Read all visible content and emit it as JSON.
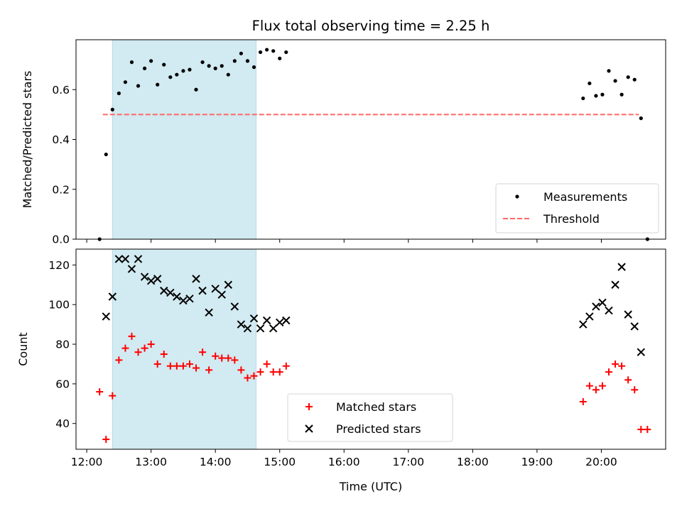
{
  "chart_data": [
    {
      "type": "scatter",
      "title": "Flux total observing time = 2.25 h",
      "ylabel": "Matched/Predicted stars",
      "xlabel": "",
      "xlim": [
        "11:50",
        "21:00"
      ],
      "ylim": [
        0,
        0.8
      ],
      "y_ticks": [
        0.0,
        0.2,
        0.4,
        0.6
      ],
      "y_tick_labels": [
        "0.0",
        "0.2",
        "0.4",
        "0.6"
      ],
      "shaded_interval": {
        "start": "12:24",
        "end": "14:38",
        "color": "#add8e6"
      },
      "threshold": {
        "name": "Threshold",
        "value": 0.5,
        "x_start": "12:15",
        "x_end": "20:35",
        "color": "#ff6666",
        "style": "dashed"
      },
      "legend_position": "lower right",
      "series": [
        {
          "name": "Measurements",
          "color": "#000000",
          "marker": "dot",
          "points": [
            [
              "12:12",
              0.0
            ],
            [
              "12:18",
              0.34
            ],
            [
              "12:24",
              0.52
            ],
            [
              "12:30",
              0.585
            ],
            [
              "12:36",
              0.63
            ],
            [
              "12:42",
              0.71
            ],
            [
              "12:48",
              0.615
            ],
            [
              "12:54",
              0.685
            ],
            [
              "13:00",
              0.715
            ],
            [
              "13:06",
              0.62
            ],
            [
              "13:12",
              0.7
            ],
            [
              "13:18",
              0.65
            ],
            [
              "13:24",
              0.66
            ],
            [
              "13:30",
              0.675
            ],
            [
              "13:36",
              0.68
            ],
            [
              "13:42",
              0.6
            ],
            [
              "13:48",
              0.71
            ],
            [
              "13:54",
              0.695
            ],
            [
              "14:00",
              0.685
            ],
            [
              "14:06",
              0.695
            ],
            [
              "14:12",
              0.66
            ],
            [
              "14:18",
              0.715
            ],
            [
              "14:24",
              0.745
            ],
            [
              "14:30",
              0.715
            ],
            [
              "14:36",
              0.69
            ],
            [
              "14:42",
              0.75
            ],
            [
              "14:48",
              0.76
            ],
            [
              "14:54",
              0.755
            ],
            [
              "15:00",
              0.725
            ],
            [
              "15:06",
              0.75
            ],
            [
              "19:43",
              0.565
            ],
            [
              "19:49",
              0.625
            ],
            [
              "19:55",
              0.575
            ],
            [
              "20:01",
              0.58
            ],
            [
              "20:07",
              0.675
            ],
            [
              "20:13",
              0.635
            ],
            [
              "20:19",
              0.58
            ],
            [
              "20:25",
              0.65
            ],
            [
              "20:31",
              0.64
            ],
            [
              "20:37",
              0.485
            ],
            [
              "20:43",
              0.0
            ]
          ]
        }
      ]
    },
    {
      "type": "scatter",
      "title": "",
      "ylabel": "Count",
      "xlabel": "Time (UTC)",
      "xlim": [
        "11:50",
        "21:00"
      ],
      "ylim": [
        27,
        128
      ],
      "y_ticks": [
        40,
        60,
        80,
        100,
        120
      ],
      "y_tick_labels": [
        "40",
        "60",
        "80",
        "100",
        "120"
      ],
      "x_ticks": [
        "12:00",
        "13:00",
        "14:00",
        "15:00",
        "16:00",
        "17:00",
        "18:00",
        "19:00",
        "20:00"
      ],
      "x_tick_labels": [
        "12:00",
        "13:00",
        "14:00",
        "15:00",
        "16:00",
        "17:00",
        "18:00",
        "19:00",
        "20:00"
      ],
      "shaded_interval": {
        "start": "12:24",
        "end": "14:38",
        "color": "#add8e6"
      },
      "legend_position": "lower center",
      "series": [
        {
          "name": "Matched stars",
          "color": "#ff0000",
          "marker": "plus",
          "points": [
            [
              "12:12",
              56
            ],
            [
              "12:18",
              32
            ],
            [
              "12:24",
              54
            ],
            [
              "12:30",
              72
            ],
            [
              "12:36",
              78
            ],
            [
              "12:42",
              84
            ],
            [
              "12:48",
              76
            ],
            [
              "12:54",
              78
            ],
            [
              "13:00",
              80
            ],
            [
              "13:06",
              70
            ],
            [
              "13:12",
              75
            ],
            [
              "13:18",
              69
            ],
            [
              "13:24",
              69
            ],
            [
              "13:30",
              69
            ],
            [
              "13:36",
              70
            ],
            [
              "13:42",
              68
            ],
            [
              "13:48",
              76
            ],
            [
              "13:54",
              67
            ],
            [
              "14:00",
              74
            ],
            [
              "14:06",
              73
            ],
            [
              "14:12",
              73
            ],
            [
              "14:18",
              72
            ],
            [
              "14:24",
              67
            ],
            [
              "14:30",
              63
            ],
            [
              "14:36",
              64
            ],
            [
              "14:42",
              66
            ],
            [
              "14:48",
              70
            ],
            [
              "14:54",
              66
            ],
            [
              "15:00",
              66
            ],
            [
              "15:06",
              69
            ],
            [
              "19:43",
              51
            ],
            [
              "19:49",
              59
            ],
            [
              "19:55",
              57
            ],
            [
              "20:01",
              59
            ],
            [
              "20:07",
              66
            ],
            [
              "20:13",
              70
            ],
            [
              "20:19",
              69
            ],
            [
              "20:25",
              62
            ],
            [
              "20:31",
              57
            ],
            [
              "20:37",
              37
            ],
            [
              "20:43",
              37
            ]
          ]
        },
        {
          "name": "Predicted stars",
          "color": "#000000",
          "marker": "x",
          "points": [
            [
              "12:18",
              94
            ],
            [
              "12:24",
              104
            ],
            [
              "12:30",
              123
            ],
            [
              "12:36",
              123
            ],
            [
              "12:42",
              118
            ],
            [
              "12:48",
              123
            ],
            [
              "12:54",
              114
            ],
            [
              "13:00",
              112
            ],
            [
              "13:06",
              113
            ],
            [
              "13:12",
              107
            ],
            [
              "13:18",
              106
            ],
            [
              "13:24",
              104
            ],
            [
              "13:30",
              102
            ],
            [
              "13:36",
              103
            ],
            [
              "13:42",
              113
            ],
            [
              "13:48",
              107
            ],
            [
              "13:54",
              96
            ],
            [
              "14:00",
              108
            ],
            [
              "14:06",
              105
            ],
            [
              "14:12",
              110
            ],
            [
              "14:18",
              99
            ],
            [
              "14:24",
              90
            ],
            [
              "14:30",
              88
            ],
            [
              "14:36",
              93
            ],
            [
              "14:42",
              88
            ],
            [
              "14:48",
              92
            ],
            [
              "14:54",
              88
            ],
            [
              "15:00",
              91
            ],
            [
              "15:06",
              92
            ],
            [
              "19:43",
              90
            ],
            [
              "19:49",
              94
            ],
            [
              "19:55",
              99
            ],
            [
              "20:01",
              101
            ],
            [
              "20:07",
              97
            ],
            [
              "20:13",
              110
            ],
            [
              "20:19",
              119
            ],
            [
              "20:25",
              95
            ],
            [
              "20:31",
              89
            ],
            [
              "20:37",
              76
            ]
          ]
        }
      ]
    }
  ]
}
